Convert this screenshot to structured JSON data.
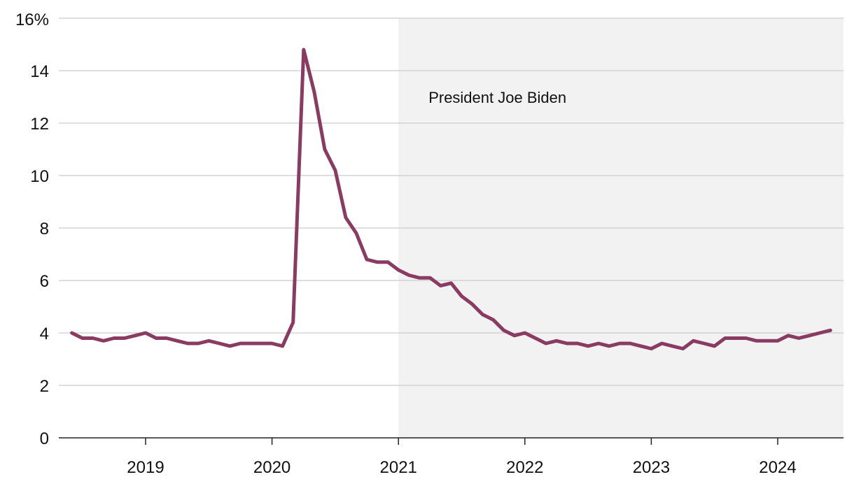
{
  "chart_data": {
    "type": "line",
    "title": "",
    "xlabel": "",
    "ylabel": "",
    "ylim": [
      0,
      16
    ],
    "y_ticks": [
      {
        "value": 0,
        "label": "0"
      },
      {
        "value": 2,
        "label": "2"
      },
      {
        "value": 4,
        "label": "4"
      },
      {
        "value": 6,
        "label": "6"
      },
      {
        "value": 8,
        "label": "8"
      },
      {
        "value": 10,
        "label": "10"
      },
      {
        "value": 12,
        "label": "12"
      },
      {
        "value": 14,
        "label": "14"
      },
      {
        "value": 16,
        "label": "16%"
      }
    ],
    "x_ticks": [
      {
        "value": "2019-01",
        "label": "2019"
      },
      {
        "value": "2020-01",
        "label": "2020"
      },
      {
        "value": "2021-01",
        "label": "2021"
      },
      {
        "value": "2022-01",
        "label": "2022"
      },
      {
        "value": "2023-01",
        "label": "2023"
      },
      {
        "value": "2024-01",
        "label": "2024"
      }
    ],
    "grid": "horizontal",
    "shaded_region": {
      "start": "2021-01",
      "label": "President Joe Biden",
      "color": "#f2f2f2"
    },
    "line_color": "#8a3b61",
    "series": [
      {
        "x": [
          "2018-06",
          "2018-07",
          "2018-08",
          "2018-09",
          "2018-10",
          "2018-11",
          "2018-12",
          "2019-01",
          "2019-02",
          "2019-03",
          "2019-04",
          "2019-05",
          "2019-06",
          "2019-07",
          "2019-08",
          "2019-09",
          "2019-10",
          "2019-11",
          "2019-12",
          "2020-01",
          "2020-02",
          "2020-03",
          "2020-04",
          "2020-05",
          "2020-06",
          "2020-07",
          "2020-08",
          "2020-09",
          "2020-10",
          "2020-11",
          "2020-12",
          "2021-01",
          "2021-02",
          "2021-03",
          "2021-04",
          "2021-05",
          "2021-06",
          "2021-07",
          "2021-08",
          "2021-09",
          "2021-10",
          "2021-11",
          "2021-12",
          "2022-01",
          "2022-02",
          "2022-03",
          "2022-04",
          "2022-05",
          "2022-06",
          "2022-07",
          "2022-08",
          "2022-09",
          "2022-10",
          "2022-11",
          "2022-12",
          "2023-01",
          "2023-02",
          "2023-03",
          "2023-04",
          "2023-05",
          "2023-06",
          "2023-07",
          "2023-08",
          "2023-09",
          "2023-10",
          "2023-11",
          "2023-12",
          "2024-01",
          "2024-02",
          "2024-03",
          "2024-04",
          "2024-05",
          "2024-06"
        ],
        "values": [
          4.0,
          3.8,
          3.8,
          3.7,
          3.8,
          3.8,
          3.9,
          4.0,
          3.8,
          3.8,
          3.7,
          3.6,
          3.6,
          3.7,
          3.6,
          3.5,
          3.6,
          3.6,
          3.6,
          3.6,
          3.5,
          4.4,
          14.8,
          13.2,
          11.0,
          10.2,
          8.4,
          7.8,
          6.8,
          6.7,
          6.7,
          6.4,
          6.2,
          6.1,
          6.1,
          5.8,
          5.9,
          5.4,
          5.1,
          4.7,
          4.5,
          4.1,
          3.9,
          4.0,
          3.8,
          3.6,
          3.7,
          3.6,
          3.6,
          3.5,
          3.6,
          3.5,
          3.6,
          3.6,
          3.5,
          3.4,
          3.6,
          3.5,
          3.4,
          3.7,
          3.6,
          3.5,
          3.8,
          3.8,
          3.8,
          3.7,
          3.7,
          3.7,
          3.9,
          3.8,
          3.9,
          4.0,
          4.1
        ]
      }
    ]
  }
}
